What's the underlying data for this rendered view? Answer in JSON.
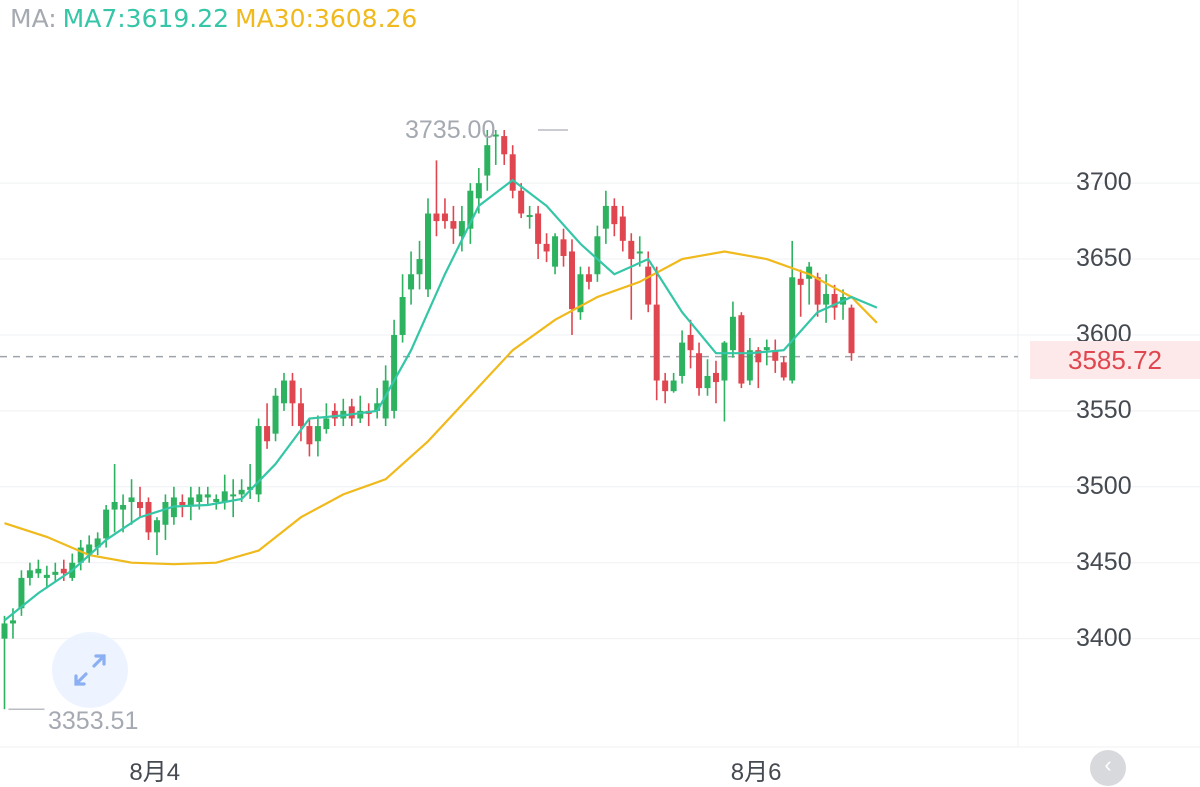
{
  "legend": {
    "label": "MA:",
    "ma7": "MA7:3619.22",
    "ma30": "MA30:3608.26"
  },
  "colors": {
    "up": "#2db260",
    "down": "#e0464f",
    "ma7": "#34c6a7",
    "ma30": "#f0b91c",
    "grid": "#eef0f3",
    "axis_text": "#454950",
    "muted_text": "#a5a9b1"
  },
  "price_tag": "3585.72",
  "high_label": "3735.00",
  "low_label": "3353.51",
  "expand_icon": "expand-arrows-icon",
  "corner_icon": "chevron-icon",
  "chart_data": {
    "type": "candlestick",
    "title": "",
    "y_ticks": [
      "3700",
      "3650",
      "3600",
      "3550",
      "3500",
      "3450",
      "3400"
    ],
    "y_tick_values": [
      3700,
      3650,
      3600,
      3550,
      3500,
      3450,
      3400
    ],
    "x_ticks": [
      {
        "label": "8月4",
        "index": 19
      },
      {
        "label": "8月6",
        "index": 90
      }
    ],
    "ylim": [
      3343,
      3787
    ],
    "grid": true,
    "current_price": 3585.72,
    "max_marker": {
      "value": 3735.0,
      "index": 67
    },
    "min_marker": {
      "value": 3353.51,
      "index": 0
    },
    "candles": [
      [
        3400,
        3410,
        3353.51,
        3415
      ],
      [
        3410,
        3412,
        3400,
        3420
      ],
      [
        3420,
        3440,
        3415,
        3445
      ],
      [
        3440,
        3445,
        3435,
        3450
      ],
      [
        3443,
        3446,
        3440,
        3452
      ],
      [
        3440,
        3442,
        3433,
        3448
      ],
      [
        3442,
        3444,
        3438,
        3450
      ],
      [
        3446,
        3443,
        3438,
        3452
      ],
      [
        3440,
        3450,
        3438,
        3456
      ],
      [
        3450,
        3460,
        3445,
        3465
      ],
      [
        3455,
        3462,
        3450,
        3468
      ],
      [
        3460,
        3466,
        3455,
        3470
      ],
      [
        3466,
        3485,
        3460,
        3488
      ],
      [
        3485,
        3490,
        3470,
        3515
      ],
      [
        3485,
        3488,
        3470,
        3495
      ],
      [
        3490,
        3493,
        3475,
        3505
      ],
      [
        3490,
        3486,
        3480,
        3500
      ],
      [
        3490,
        3470,
        3465,
        3493
      ],
      [
        3470,
        3478,
        3455,
        3480
      ],
      [
        3475,
        3490,
        3465,
        3495
      ],
      [
        3480,
        3493,
        3475,
        3500
      ],
      [
        3490,
        3488,
        3480,
        3495
      ],
      [
        3488,
        3493,
        3478,
        3500
      ],
      [
        3490,
        3495,
        3485,
        3500
      ],
      [
        3493,
        3495,
        3488,
        3500
      ],
      [
        3490,
        3492,
        3485,
        3495
      ],
      [
        3490,
        3497,
        3485,
        3508
      ],
      [
        3495,
        3495,
        3480,
        3505
      ],
      [
        3495,
        3498,
        3490,
        3505
      ],
      [
        3498,
        3500,
        3492,
        3515
      ],
      [
        3495,
        3540,
        3490,
        3545
      ],
      [
        3540,
        3530,
        3525,
        3555
      ],
      [
        3535,
        3560,
        3530,
        3565
      ],
      [
        3555,
        3570,
        3550,
        3575
      ],
      [
        3570,
        3555,
        3540,
        3575
      ],
      [
        3555,
        3540,
        3530,
        3565
      ],
      [
        3540,
        3528,
        3520,
        3545
      ],
      [
        3530,
        3540,
        3520,
        3547
      ],
      [
        3538,
        3545,
        3535,
        3555
      ],
      [
        3550,
        3545,
        3540,
        3555
      ],
      [
        3545,
        3550,
        3540,
        3558
      ],
      [
        3553,
        3545,
        3540,
        3558
      ],
      [
        3545,
        3550,
        3542,
        3560
      ],
      [
        3550,
        3548,
        3540,
        3555
      ],
      [
        3550,
        3555,
        3545,
        3565
      ],
      [
        3545,
        3570,
        3540,
        3580
      ],
      [
        3550,
        3600,
        3545,
        3610
      ],
      [
        3600,
        3625,
        3595,
        3640
      ],
      [
        3630,
        3640,
        3620,
        3655
      ],
      [
        3640,
        3650,
        3630,
        3662
      ],
      [
        3630,
        3680,
        3625,
        3690
      ],
      [
        3680,
        3675,
        3665,
        3715
      ],
      [
        3680,
        3675,
        3670,
        3690
      ],
      [
        3675,
        3670,
        3660,
        3685
      ],
      [
        3665,
        3675,
        3655,
        3685
      ],
      [
        3670,
        3695,
        3660,
        3700
      ],
      [
        3690,
        3700,
        3680,
        3710
      ],
      [
        3705,
        3725,
        3695,
        3735
      ],
      [
        3732,
        3732,
        3712,
        3735
      ],
      [
        3731,
        3719,
        3712,
        3735
      ],
      [
        3719,
        3695,
        3690,
        3725
      ],
      [
        3695,
        3680,
        3677,
        3700
      ],
      [
        3678,
        3679,
        3670,
        3685
      ],
      [
        3680,
        3660,
        3650,
        3685
      ],
      [
        3660,
        3655,
        3648,
        3667
      ],
      [
        3645,
        3665,
        3640,
        3667
      ],
      [
        3663,
        3652,
        3645,
        3670
      ],
      [
        3655,
        3617,
        3600,
        3663
      ],
      [
        3615,
        3640,
        3610,
        3645
      ],
      [
        3640,
        3635,
        3630,
        3645
      ],
      [
        3640,
        3665,
        3635,
        3672
      ],
      [
        3670,
        3685,
        3660,
        3695
      ],
      [
        3685,
        3673,
        3665,
        3690
      ],
      [
        3678,
        3662,
        3655,
        3685
      ],
      [
        3662,
        3650,
        3610,
        3667
      ],
      [
        3655,
        3655,
        3645,
        3665
      ],
      [
        3645,
        3620,
        3615,
        3655
      ],
      [
        3620,
        3570,
        3557,
        3645
      ],
      [
        3570,
        3563,
        3555,
        3575
      ],
      [
        3563,
        3570,
        3562,
        3575
      ],
      [
        3573,
        3595,
        3568,
        3603
      ],
      [
        3600,
        3590,
        3578,
        3610
      ],
      [
        3588,
        3565,
        3560,
        3595
      ],
      [
        3565,
        3573,
        3560,
        3584
      ],
      [
        3575,
        3569,
        3555,
        3583
      ],
      [
        3570,
        3595,
        3543,
        3596
      ],
      [
        3590,
        3612,
        3585,
        3622
      ],
      [
        3613,
        3568,
        3565,
        3615
      ],
      [
        3570,
        3590,
        3567,
        3598
      ],
      [
        3590,
        3582,
        3565,
        3592
      ],
      [
        3590,
        3592,
        3580,
        3597
      ],
      [
        3590,
        3583,
        3575,
        3597
      ],
      [
        3582,
        3572,
        3570,
        3586
      ],
      [
        3570,
        3638,
        3568,
        3662
      ],
      [
        3637,
        3633,
        3612,
        3643
      ],
      [
        3637,
        3645,
        3620,
        3648
      ],
      [
        3638,
        3620,
        3612,
        3641
      ],
      [
        3620,
        3627,
        3608,
        3640
      ],
      [
        3627,
        3618,
        3610,
        3633
      ],
      [
        3620,
        3625,
        3610,
        3630
      ],
      [
        3618,
        3588,
        3583,
        3620
      ]
    ],
    "ma7": [
      [
        0,
        3412
      ],
      [
        4,
        3430
      ],
      [
        8,
        3445
      ],
      [
        12,
        3465
      ],
      [
        16,
        3480
      ],
      [
        20,
        3487
      ],
      [
        24,
        3488
      ],
      [
        28,
        3492
      ],
      [
        32,
        3515
      ],
      [
        36,
        3545
      ],
      [
        40,
        3547
      ],
      [
        44,
        3550
      ],
      [
        48,
        3590
      ],
      [
        52,
        3640
      ],
      [
        56,
        3685
      ],
      [
        60,
        3702
      ],
      [
        64,
        3685
      ],
      [
        68,
        3660
      ],
      [
        72,
        3640
      ],
      [
        76,
        3650
      ],
      [
        80,
        3615
      ],
      [
        84,
        3588
      ],
      [
        88,
        3588
      ],
      [
        92,
        3590
      ],
      [
        96,
        3615
      ],
      [
        100,
        3625
      ],
      [
        103,
        3618
      ]
    ],
    "ma30": [
      [
        0,
        3476
      ],
      [
        5,
        3467
      ],
      [
        10,
        3455
      ],
      [
        15,
        3450
      ],
      [
        20,
        3449
      ],
      [
        25,
        3450
      ],
      [
        30,
        3458
      ],
      [
        35,
        3480
      ],
      [
        40,
        3495
      ],
      [
        45,
        3505
      ],
      [
        50,
        3530
      ],
      [
        55,
        3560
      ],
      [
        60,
        3590
      ],
      [
        65,
        3610
      ],
      [
        70,
        3625
      ],
      [
        75,
        3635
      ],
      [
        80,
        3650
      ],
      [
        85,
        3655
      ],
      [
        90,
        3650
      ],
      [
        95,
        3640
      ],
      [
        100,
        3625
      ],
      [
        103,
        3608
      ]
    ]
  }
}
